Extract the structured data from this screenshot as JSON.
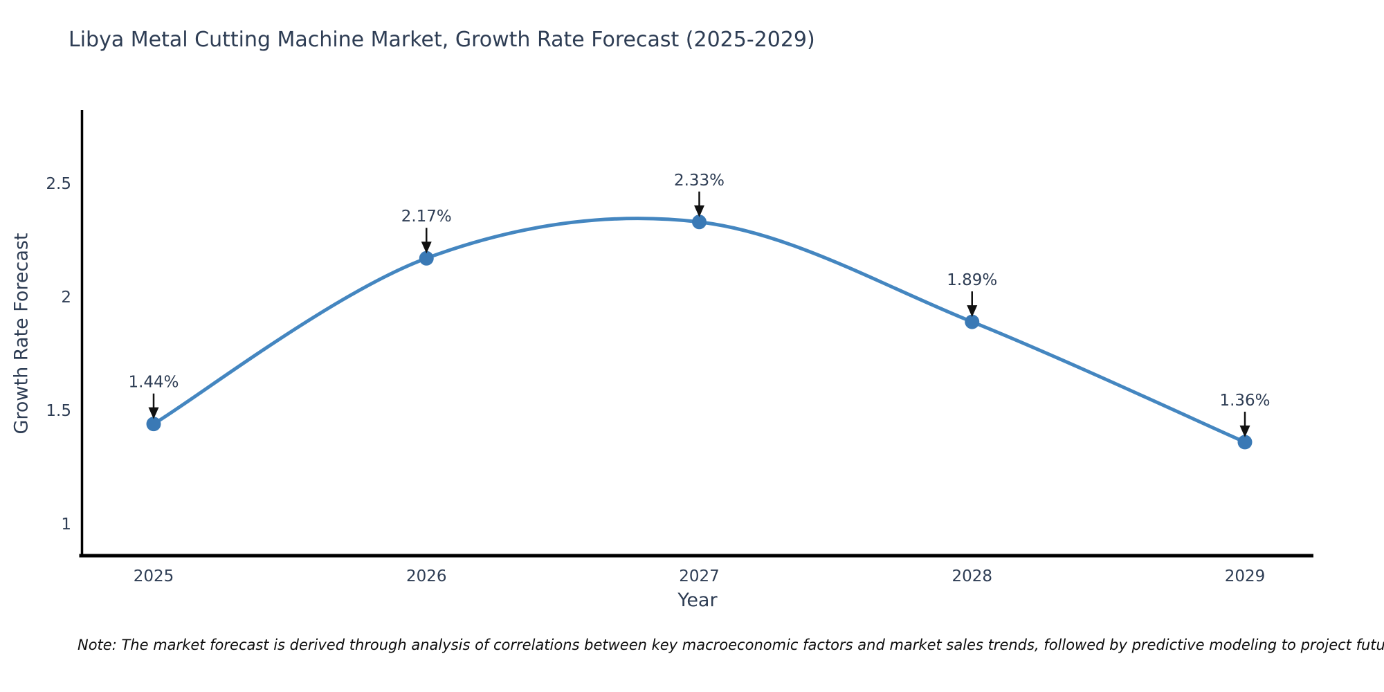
{
  "chart_data": {
    "type": "line",
    "title": "Libya Metal Cutting Machine Market, Growth Rate Forecast (2025-2029)",
    "xlabel": "Year",
    "ylabel": "Growth Rate Forecast",
    "categories": [
      "2025",
      "2026",
      "2027",
      "2028",
      "2029"
    ],
    "values": [
      1.44,
      2.17,
      2.33,
      1.89,
      1.36
    ],
    "point_labels": [
      "1.44%",
      "2.17%",
      "2.33%",
      "1.89%",
      "1.36%"
    ],
    "y_ticks": [
      1,
      1.5,
      2,
      2.5
    ],
    "y_tick_labels": [
      "1",
      "1.5",
      "2",
      "2.5"
    ],
    "ylim": [
      0.85,
      2.82
    ],
    "line_shape": "spline",
    "grid": false,
    "legend": "none",
    "annotation_style": "value label with downward black arrow onto each marker",
    "colors": {
      "line": "#4486c0",
      "marker": "#3a79b5",
      "axis": "#000000",
      "text": "#2e3d54",
      "arrow": "#111111",
      "background": "#ffffff"
    }
  },
  "note": "Note: The market forecast is derived through analysis of correlations between key macroeconomic factors and market sales trends, followed by predictive modeling to project future sales"
}
